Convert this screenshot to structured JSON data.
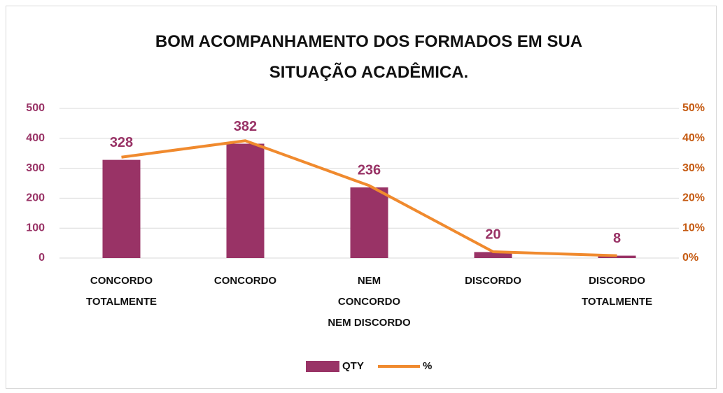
{
  "chart_data": {
    "type": "bar_line",
    "title": "BOM ACOMPANHAMENTO DOS FORMADOS EM SUA SITUAÇÃO ACADÊMICA.",
    "categories": [
      "CONCORDO TOTALMENTE",
      "CONCORDO",
      "NEM CONCORDO NEM DISCORDO",
      "DISCORDO",
      "DISCORDO TOTALMENTE"
    ],
    "series": [
      {
        "name": "QTY",
        "color": "#993366",
        "type": "bar",
        "values": [
          328,
          382,
          236,
          20,
          8
        ]
      },
      {
        "name": "%",
        "color": "#f08a2e",
        "type": "line",
        "axis": "y2",
        "values": [
          33.7,
          39.2,
          24.2,
          2.1,
          0.8
        ]
      }
    ],
    "ylim": [
      0,
      500
    ],
    "yticks": [
      0,
      100,
      200,
      300,
      400,
      500
    ],
    "y2lim": [
      0,
      50
    ],
    "y2ticks": [
      {
        "value": 0,
        "label": "0%"
      },
      {
        "value": 10,
        "label": "10%"
      },
      {
        "value": 20,
        "label": "20%"
      },
      {
        "value": 30,
        "label": "30%"
      },
      {
        "value": 40,
        "label": "40%"
      },
      {
        "value": 50,
        "label": "50%"
      }
    ],
    "grid": true,
    "legend": "bottom"
  }
}
